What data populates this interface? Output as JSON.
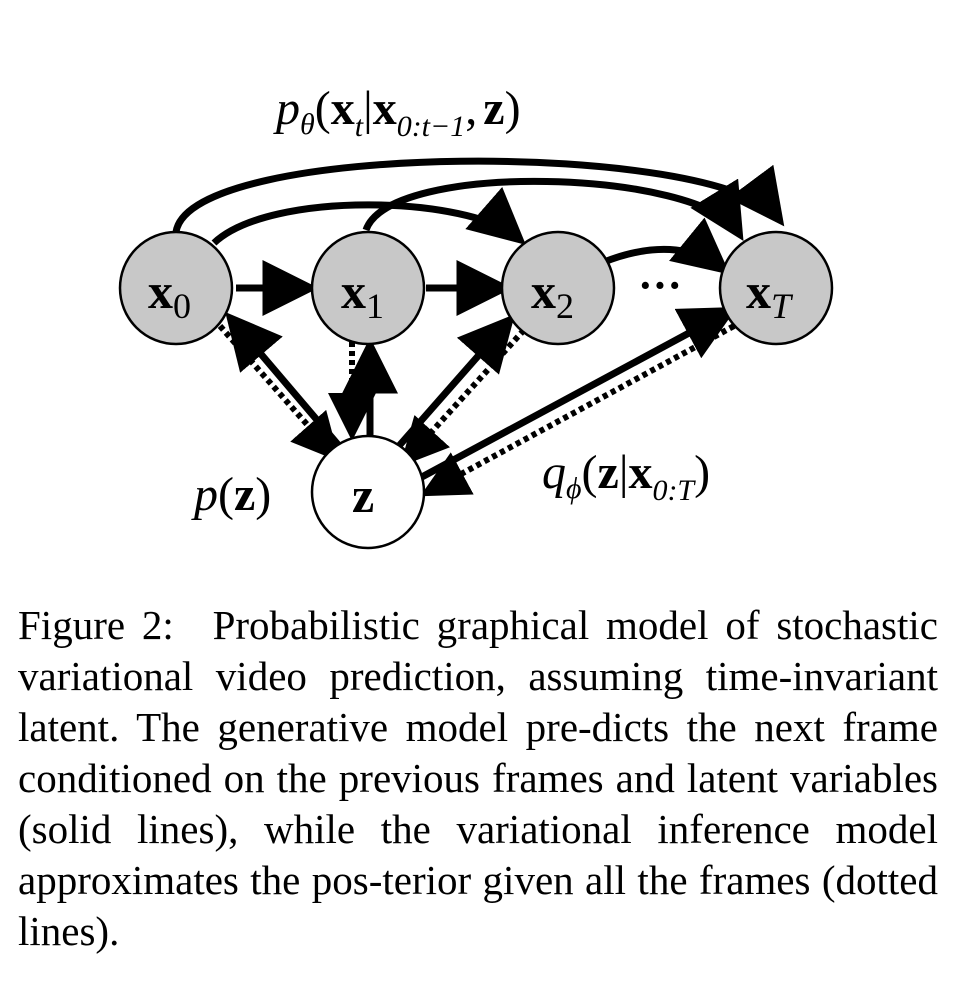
{
  "diagram": {
    "nodes": [
      {
        "id": "x0",
        "symbol": "x",
        "subscript": "0",
        "fill": "#c8c8c8",
        "observed": true
      },
      {
        "id": "x1",
        "symbol": "x",
        "subscript": "1",
        "fill": "#c8c8c8",
        "observed": true
      },
      {
        "id": "x2",
        "symbol": "x",
        "subscript": "2",
        "fill": "#c8c8c8",
        "observed": true
      },
      {
        "id": "xT",
        "symbol": "x",
        "subscript": "T",
        "fill": "#c8c8c8",
        "observed": true
      },
      {
        "id": "z",
        "symbol": "z",
        "subscript": "",
        "fill": "#ffffff",
        "observed": false
      }
    ],
    "ellipsis": "···",
    "edges_generative": [
      [
        "x0",
        "x1"
      ],
      [
        "x1",
        "x2"
      ],
      [
        "x2",
        "xT"
      ],
      [
        "x0",
        "x2"
      ],
      [
        "x0",
        "xT"
      ],
      [
        "x1",
        "xT"
      ],
      [
        "z",
        "x0"
      ],
      [
        "z",
        "x1"
      ],
      [
        "z",
        "x2"
      ],
      [
        "z",
        "xT"
      ]
    ],
    "edges_inference": [
      [
        "x0",
        "z"
      ],
      [
        "x1",
        "z"
      ],
      [
        "x2",
        "z"
      ],
      [
        "xT",
        "z"
      ]
    ],
    "labels": {
      "generative": {
        "p": "p",
        "theta": "θ",
        "open": "(",
        "x": "x",
        "t": "t",
        "bar": "|",
        "x2": "x",
        "range": "0:t−1",
        "comma": ",",
        "z": "z",
        "close": ")"
      },
      "prior": {
        "p": "p",
        "open": "(",
        "z": "z",
        "close": ")"
      },
      "posterior": {
        "q": "q",
        "phi": "ϕ",
        "open": "(",
        "z": "z",
        "bar": "|",
        "x": "x",
        "range": "0:T",
        "close": ")"
      }
    }
  },
  "caption": {
    "label": "Figure 2:",
    "text": "Probabilistic graphical model of stochastic variational video prediction, assuming time-invariant latent. The generative model pre-dicts the next frame conditioned on the previous frames and latent variables (solid lines), while the variational inference model approximates the pos-terior given all the frames (dotted lines)."
  }
}
